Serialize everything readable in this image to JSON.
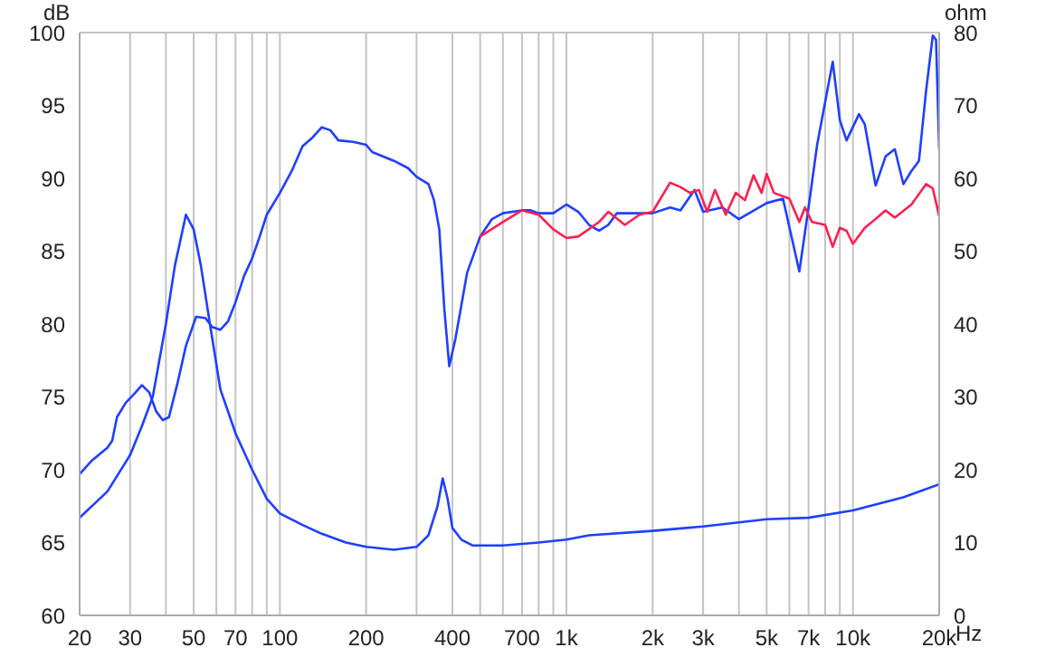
{
  "chart_data": {
    "type": "line",
    "ylabel": "dB",
    "y2label": "ohm",
    "log": "x",
    "grid": true,
    "xlim": [
      20,
      20000
    ],
    "xticks": [
      20,
      30,
      {
        "value": 40,
        "label": null
      },
      50,
      {
        "value": 60,
        "label": null
      },
      70,
      {
        "value": 80,
        "label": null
      },
      {
        "value": 90,
        "label": null
      },
      100,
      200,
      {
        "value": 300,
        "label": null
      },
      400,
      {
        "value": 500,
        "label": null
      },
      {
        "value": 600,
        "label": null
      },
      700,
      {
        "value": 800,
        "label": null
      },
      {
        "value": 900,
        "label": null
      },
      {
        "value": 1000,
        "label": "1k"
      },
      {
        "value": 2000,
        "label": "2k"
      },
      {
        "value": 3000,
        "label": "3k"
      },
      {
        "value": 4000,
        "label": null
      },
      {
        "value": 5000,
        "label": "5k"
      },
      {
        "value": 6000,
        "label": null
      },
      {
        "value": 7000,
        "label": "7k"
      },
      {
        "value": 8000,
        "label": null
      },
      {
        "value": 9000,
        "label": null
      },
      {
        "value": 10000,
        "label": "10k"
      },
      {
        "value": 20000,
        "label": "20k"
      }
    ],
    "xlabel": "Hz",
    "ylim": [
      60,
      100
    ],
    "yticks": [
      60,
      65,
      70,
      75,
      80,
      85,
      90,
      95,
      100
    ],
    "y2lim": [
      0,
      80
    ],
    "y2ticks": [
      0,
      10,
      20,
      30,
      40,
      50,
      60,
      70,
      80
    ],
    "series": [
      {
        "color": "#1f3fff",
        "x": [
          20,
          22,
          25,
          26,
          27,
          29,
          31,
          33,
          35,
          37,
          39,
          41,
          44,
          47,
          51,
          55,
          58,
          62,
          66,
          70,
          75,
          80,
          85,
          90,
          100,
          110,
          120,
          130,
          140,
          150,
          160,
          180,
          200,
          210,
          250,
          280,
          300,
          330,
          345,
          360,
          375,
          390,
          410,
          450,
          500,
          550,
          600,
          700,
          750,
          800,
          900,
          1000,
          1100,
          1200,
          1300,
          1400,
          1500,
          2000,
          2300,
          2500,
          2800,
          3000,
          3500,
          4000,
          5000,
          5700,
          6500,
          7000,
          7500,
          8500,
          9000,
          9500,
          10500,
          11000,
          12000,
          13000,
          14000,
          15000,
          16000,
          17000,
          18000,
          19000,
          19500,
          20000
        ],
        "values": [
          69.7,
          70.6,
          71.5,
          72,
          73.6,
          74.6,
          75.2,
          75.8,
          75.3,
          74,
          73.4,
          73.6,
          76,
          78.5,
          80.5,
          80.4,
          79.8,
          79.6,
          80.2,
          81.5,
          83.3,
          84.5,
          86,
          87.5,
          89,
          90.5,
          92.2,
          92.8,
          93.5,
          93.3,
          92.6,
          92.5,
          92.3,
          91.8,
          91.2,
          90.7,
          90.1,
          89.6,
          88.5,
          86.5,
          81,
          77.1,
          79,
          83.5,
          86,
          87.2,
          87.6,
          87.8,
          87.8,
          87.6,
          87.6,
          88.2,
          87.7,
          86.8,
          86.4,
          86.8,
          87.6,
          87.6,
          88,
          87.8,
          89.2,
          87.7,
          88,
          87.2,
          88.3,
          88.6,
          83.6,
          88,
          92.3,
          98,
          94,
          92.6,
          94.4,
          93.7,
          89.5,
          91.5,
          92,
          89.6,
          90.5,
          91.2,
          96,
          99.8,
          99.5,
          92
        ]
      },
      {
        "color": "#ff1f4f",
        "x": [
          500,
          600,
          700,
          800,
          900,
          1000,
          1100,
          1300,
          1400,
          1600,
          1800,
          2000,
          2300,
          2500,
          2700,
          2900,
          3100,
          3300,
          3600,
          3900,
          4200,
          4500,
          4800,
          5000,
          5300,
          6000,
          6500,
          6800,
          7200,
          8000,
          8500,
          9000,
          9500,
          10000,
          11000,
          12000,
          13000,
          14000,
          16000,
          18000,
          19000,
          20000
        ],
        "values": [
          86,
          87,
          87.8,
          87.5,
          86.5,
          85.9,
          86,
          87,
          87.7,
          86.8,
          87.5,
          87.7,
          89.7,
          89.4,
          89,
          89.2,
          87.7,
          89.2,
          87.5,
          89,
          88.5,
          90.2,
          89,
          90.3,
          89,
          88.6,
          87,
          88,
          87,
          86.8,
          85.3,
          86.6,
          86.4,
          85.5,
          86.6,
          87.2,
          87.8,
          87.3,
          88.2,
          89.6,
          89.3,
          87.4
        ]
      },
      {
        "color": "#1f3fff",
        "axis": "y2",
        "x": [
          20,
          25,
          30,
          33,
          36,
          40,
          43,
          47,
          50,
          53,
          57,
          62,
          70,
          80,
          90,
          100,
          120,
          140,
          170,
          200,
          250,
          300,
          330,
          355,
          370,
          385,
          400,
          430,
          470,
          600,
          800,
          1000,
          1200,
          2000,
          3000,
          5000,
          7000,
          10000,
          15000,
          20000
        ],
        "values": [
          13.4,
          17,
          22,
          26,
          30,
          40,
          48,
          55,
          53,
          48,
          40,
          31,
          25,
          20,
          16,
          14,
          12.4,
          11.2,
          10,
          9.4,
          9,
          9.4,
          11,
          15,
          18.8,
          16,
          12,
          10.4,
          9.6,
          9.6,
          10,
          10.4,
          11,
          11.6,
          12.2,
          13.2,
          13.4,
          14.4,
          16.2,
          18
        ]
      }
    ]
  }
}
